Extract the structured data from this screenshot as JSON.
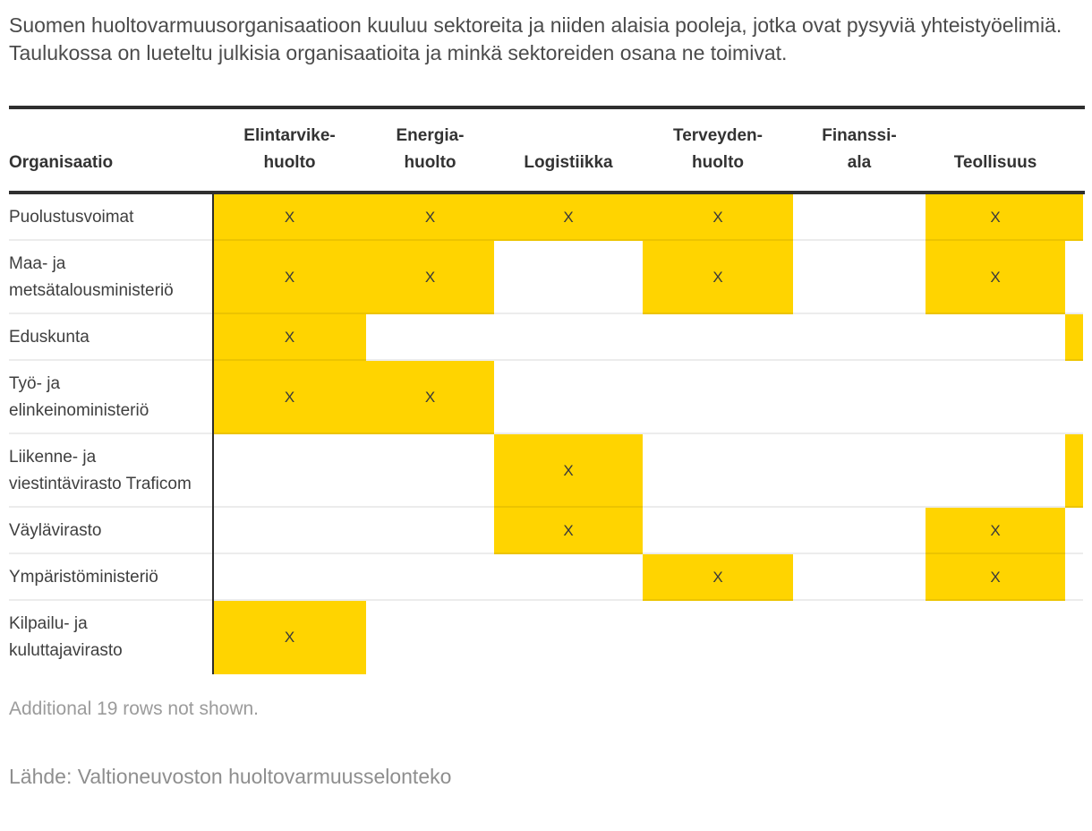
{
  "intro": "Suomen huoltovarmuusorganisaatioon kuuluu sektoreita ja niiden alaisia pooleja, jotka ovat pysyviä yhteistyöelimiä. Taulukossa on lueteltu julkisia organisaatioita ja minkä sektoreiden osana ne toimivat.",
  "chart_data": {
    "type": "table",
    "first_column_header": "Organisaatio",
    "mark": "X",
    "columns": [
      {
        "id": "elintarvikehuolto",
        "label_lines": [
          "Elintarvike-",
          "huolto"
        ],
        "css": "c1"
      },
      {
        "id": "energiahuolto",
        "label_lines": [
          "Energia-",
          "huolto"
        ],
        "css": "c2"
      },
      {
        "id": "logistiikka",
        "label_lines": [
          "Logistiikka"
        ],
        "css": "c3"
      },
      {
        "id": "terveydenhuolto",
        "label_lines": [
          "Terveyden-",
          "huolto"
        ],
        "css": "c4"
      },
      {
        "id": "finanssiala",
        "label_lines": [
          "Finanssi-",
          "ala"
        ],
        "css": "c5"
      },
      {
        "id": "teollisuus",
        "label_lines": [
          "Teollisuus"
        ],
        "css": "c6"
      },
      {
        "id": "clipped-column",
        "label_lines": [],
        "css": "c7"
      }
    ],
    "rows": [
      {
        "organization": "Puolustusvoimat",
        "cells": [
          "X",
          "X",
          "X",
          "X",
          "",
          "X",
          "fill"
        ]
      },
      {
        "organization": "Maa- ja metsätalousministeriö",
        "cells": [
          "X",
          "X",
          "",
          "X",
          "",
          "X",
          ""
        ]
      },
      {
        "organization": "Eduskunta",
        "cells": [
          "X",
          "",
          "",
          "",
          "",
          "",
          "fill"
        ]
      },
      {
        "organization": "Työ- ja elinkeinoministeriö",
        "cells": [
          "X",
          "X",
          "",
          "",
          "",
          "",
          ""
        ]
      },
      {
        "organization": "Liikenne- ja viestintävirasto Traficom",
        "cells": [
          "",
          "",
          "X",
          "",
          "",
          "",
          "fill"
        ]
      },
      {
        "organization": "Väylävirasto",
        "cells": [
          "",
          "",
          "X",
          "",
          "",
          "X",
          ""
        ]
      },
      {
        "organization": "Ympäristöministeriö",
        "cells": [
          "",
          "",
          "",
          "X",
          "",
          "X",
          ""
        ]
      },
      {
        "organization": "Kilpailu- ja kuluttajavirasto",
        "cells": [
          "X",
          "",
          "",
          "",
          "",
          "",
          ""
        ]
      }
    ],
    "legend_position": "none",
    "grid": "row-separators"
  },
  "footer": {
    "note": "Additional 19 rows not shown.",
    "source": "Lähde: Valtioneuvoston huoltovarmuusselonteko"
  },
  "colors": {
    "highlight": "#ffd400",
    "rule": "#2f2f2f",
    "header_text": "#333333",
    "body_text": "#3f3f3f",
    "muted_text": "#9b9b9b"
  }
}
